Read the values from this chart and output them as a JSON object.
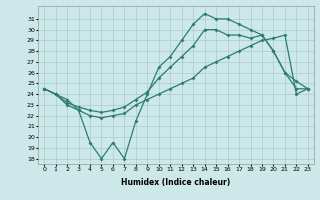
{
  "xlabel": "Humidex (Indice chaleur)",
  "background_color": "#cce8e8",
  "grid_color": "#aacccc",
  "line_color": "#2d7d6e",
  "xlim": [
    -0.5,
    23.5
  ],
  "ylim": [
    17.5,
    32.2
  ],
  "xticks": [
    0,
    1,
    2,
    3,
    4,
    5,
    6,
    7,
    8,
    9,
    10,
    11,
    12,
    13,
    14,
    15,
    16,
    17,
    18,
    19,
    20,
    21,
    22,
    23
  ],
  "yticks": [
    18,
    19,
    20,
    21,
    22,
    23,
    24,
    25,
    26,
    27,
    28,
    29,
    30,
    31
  ],
  "line1_x": [
    0,
    1,
    2,
    3,
    4,
    5,
    6,
    7,
    8,
    9,
    10,
    11,
    12,
    13,
    14,
    15,
    16,
    17,
    18,
    19,
    20,
    21,
    22,
    23
  ],
  "line1_y": [
    24.5,
    24.0,
    23.5,
    22.5,
    19.5,
    18.0,
    19.5,
    18.0,
    21.5,
    24.0,
    26.5,
    27.5,
    29.0,
    30.5,
    31.5,
    31.0,
    31.0,
    30.5,
    30.0,
    29.5,
    28.0,
    26.0,
    24.5,
    24.5
  ],
  "line2_x": [
    0,
    1,
    2,
    3,
    4,
    5,
    6,
    7,
    8,
    9,
    10,
    11,
    12,
    13,
    14,
    15,
    16,
    17,
    18,
    19,
    20,
    21,
    22,
    23
  ],
  "line2_y": [
    24.5,
    24.0,
    23.2,
    22.8,
    22.5,
    22.3,
    22.5,
    22.8,
    23.5,
    24.2,
    25.5,
    26.5,
    27.5,
    28.5,
    30.0,
    30.0,
    29.5,
    29.5,
    29.2,
    29.5,
    28.0,
    26.0,
    25.2,
    24.5
  ],
  "line3_x": [
    0,
    1,
    2,
    3,
    4,
    5,
    6,
    7,
    8,
    9,
    10,
    11,
    12,
    13,
    14,
    15,
    16,
    17,
    18,
    19,
    20,
    21,
    22,
    23
  ],
  "line3_y": [
    24.5,
    24.0,
    23.0,
    22.5,
    22.0,
    21.8,
    22.0,
    22.2,
    23.0,
    23.5,
    24.0,
    24.5,
    25.0,
    25.5,
    26.5,
    27.0,
    27.5,
    28.0,
    28.5,
    29.0,
    29.2,
    29.5,
    24.0,
    24.5
  ],
  "figsize": [
    3.2,
    2.0
  ],
  "dpi": 100,
  "xlabel_fontsize": 5.5,
  "tick_fontsize": 4.5
}
